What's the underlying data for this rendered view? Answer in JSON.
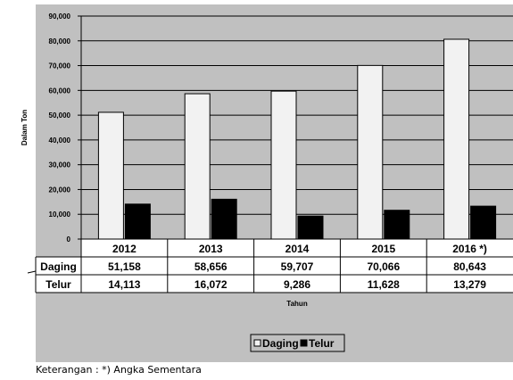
{
  "chart_data": {
    "type": "bar",
    "categories": [
      "2012",
      "2013",
      "2014",
      "2015",
      "2016  *)"
    ],
    "series": [
      {
        "name": "Daging",
        "values": [
          51158,
          58656,
          59707,
          70066,
          80643
        ],
        "labels": [
          "51,158",
          "58,656",
          "59,707",
          "70,066",
          "80,643"
        ],
        "color": "#f2f2f2"
      },
      {
        "name": "Telur",
        "values": [
          14113,
          16072,
          9286,
          11628,
          13279
        ],
        "labels": [
          "14,113",
          "16,072",
          "9,286",
          "11,628",
          "13,279"
        ],
        "color": "#000000"
      }
    ],
    "ylabel": "Dalam Ton",
    "xlabel": "Tahun",
    "ylim": [
      0,
      90000
    ],
    "yticks": [
      0,
      10000,
      20000,
      30000,
      40000,
      50000,
      60000,
      70000,
      80000,
      90000
    ],
    "ytick_labels": [
      "0",
      "10,000",
      "20,000",
      "30,000",
      "40,000",
      "50,000",
      "60,000",
      "70,000",
      "80,000",
      "90,000"
    ],
    "grid": true,
    "legend_position": "bottom",
    "data_table": true,
    "plot_background": "#c0c0c0",
    "chart_background": "#c0c0c0"
  },
  "note": {
    "text": "Keterangan : *)    Angka Sementara"
  }
}
